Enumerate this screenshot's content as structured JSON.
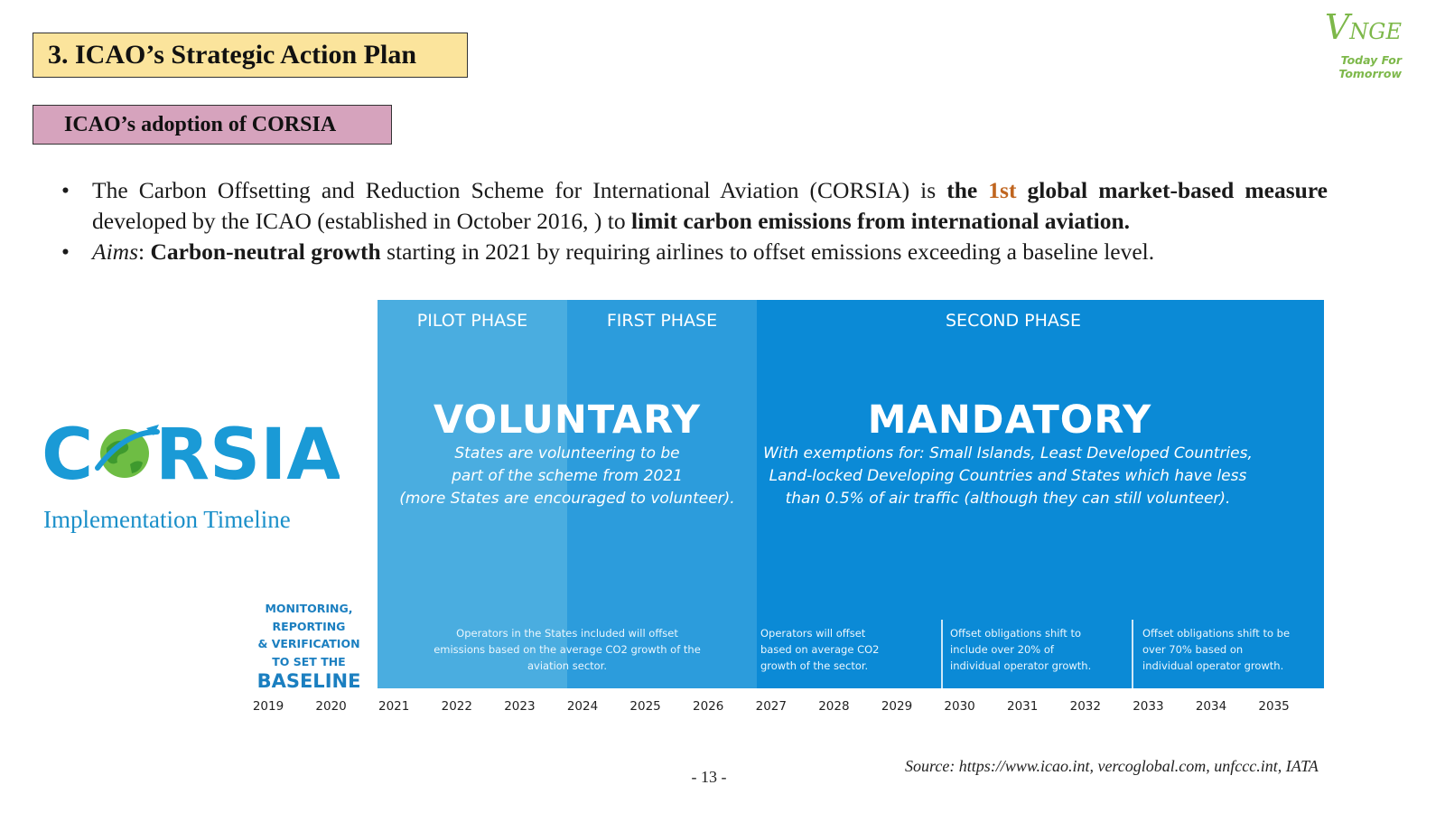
{
  "slide": {
    "title": "3. ICAO’s Strategic Action Plan",
    "subtitle": "ICAO’s adoption of CORSIA",
    "brand": {
      "name_initial": "V",
      "name_rest": "NGE",
      "tagline": "Today For Tomorrow",
      "color": "#7db84a"
    },
    "bullets": [
      {
        "parts": [
          {
            "text": "The Carbon Offsetting and Reduction Scheme for International Aviation (CORSIA) is  ",
            "style": "normal"
          },
          {
            "text": "the ",
            "style": "bold"
          },
          {
            "text": "1st",
            "style": "orange"
          },
          {
            "text": " global market-based measure",
            "style": "bold"
          },
          {
            "text": " developed by the ICAO (established in October 2016, ) to ",
            "style": "normal"
          },
          {
            "text": "limit carbon emissions from international aviation.",
            "style": "bold"
          }
        ]
      },
      {
        "parts": [
          {
            "text": "Aims",
            "style": "italic"
          },
          {
            "text": ": ",
            "style": "normal"
          },
          {
            "text": "Carbon-neutral growth",
            "style": "bold"
          },
          {
            "text": " starting in 2021 by requiring airlines to offset emissions exceeding a baseline level.",
            "style": "normal"
          }
        ]
      }
    ],
    "corsia_logo": {
      "letters_left": "C",
      "letters_right": "RSIA",
      "icon": "globe-plane-icon"
    },
    "timeline_caption": "Implementation Timeline",
    "mrv": {
      "text_lines": [
        "MONITORING,",
        "REPORTING",
        "& VERIFICATION",
        "TO SET THE"
      ],
      "emphasis": "BASELINE"
    },
    "page_number": "- 13 -",
    "source": "Source: https://www.icao.int, vercoglobal.com, unfccc.int, IATA"
  },
  "timeline": {
    "phases": [
      {
        "id": "pilot",
        "label": "PILOT PHASE",
        "color": "#4aade0"
      },
      {
        "id": "first",
        "label": "FIRST PHASE",
        "color": "#2c9cdc"
      },
      {
        "id": "second",
        "label": "SECOND PHASE",
        "color": "#0b8ad6"
      }
    ],
    "voluntary": {
      "title": "VOLUNTARY",
      "desc_lines": [
        "States are volunteering to be",
        "part of the scheme from 2021",
        "(more States are encouraged to volunteer)."
      ]
    },
    "mandatory": {
      "title": "MANDATORY",
      "desc_lines": [
        "With exemptions for: Small Islands, Least Developed Countries,",
        "Land-locked Developing Countries and States which have less",
        "than 0.5% of air traffic (although they can still volunteer)."
      ]
    },
    "notes": {
      "voluntary": [
        "Operators in the States included will offset",
        "emissions based on the average CO2 growth of the",
        "aviation sector."
      ],
      "y2027": [
        "Operators will offset",
        "based on average CO2",
        "growth of the sector."
      ],
      "y2030": [
        "Offset obligations shift to",
        "include over 20% of",
        "individual operator growth."
      ],
      "y2033": [
        "Offset obligations shift to be",
        "over 70% based on",
        "individual operator growth."
      ]
    },
    "years": [
      "2019",
      "2020",
      "2021",
      "2022",
      "2023",
      "2024",
      "2025",
      "2026",
      "2027",
      "2028",
      "2029",
      "2030",
      "2031",
      "2032",
      "2033",
      "2034",
      "2035"
    ]
  }
}
